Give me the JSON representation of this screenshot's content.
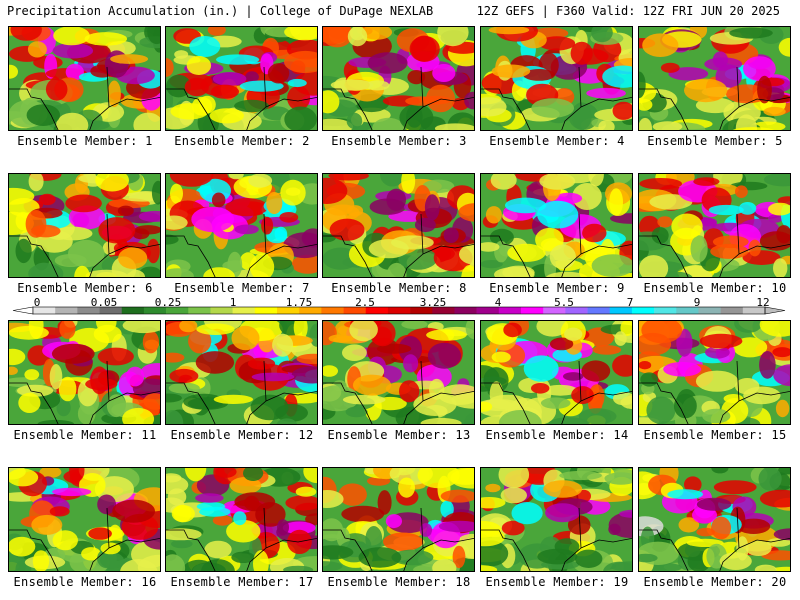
{
  "header": {
    "left_title": "Precipitation Accumulation (in.) | College of DuPage NEXLAB",
    "right_title": "12Z GEFS | F360 Valid: 12Z FRI JUN 20 2025"
  },
  "panels": [
    {
      "label": "Ensemble Member: 1",
      "seed": 1
    },
    {
      "label": "Ensemble Member: 2",
      "seed": 2
    },
    {
      "label": "Ensemble Member: 3",
      "seed": 3
    },
    {
      "label": "Ensemble Member: 4",
      "seed": 4
    },
    {
      "label": "Ensemble Member: 5",
      "seed": 5
    },
    {
      "label": "Ensemble Member: 6",
      "seed": 6
    },
    {
      "label": "Ensemble Member: 7",
      "seed": 7
    },
    {
      "label": "Ensemble Member: 8",
      "seed": 8
    },
    {
      "label": "Ensemble Member: 9",
      "seed": 9
    },
    {
      "label": "Ensemble Member: 10",
      "seed": 10
    },
    {
      "label": "Ensemble Member: 11",
      "seed": 11
    },
    {
      "label": "Ensemble Member: 12",
      "seed": 12
    },
    {
      "label": "Ensemble Member: 13",
      "seed": 13
    },
    {
      "label": "Ensemble Member: 14",
      "seed": 14
    },
    {
      "label": "Ensemble Member: 15",
      "seed": 15
    },
    {
      "label": "Ensemble Member: 16",
      "seed": 16
    },
    {
      "label": "Ensemble Member: 17",
      "seed": 17
    },
    {
      "label": "Ensemble Member: 18",
      "seed": 18
    },
    {
      "label": "Ensemble Member: 19",
      "seed": 19
    },
    {
      "label": "Ensemble Member: 20",
      "seed": 20
    }
  ],
  "colorbar": {
    "labels": [
      "0",
      "0.05",
      "0.25",
      "1",
      "1.75",
      "2.5",
      "3.25",
      "4",
      "5.5",
      "7",
      "9",
      "12"
    ],
    "colors": [
      "#e6e6e6",
      "#b4b4b4",
      "#8c8c8c",
      "#6e6e6e",
      "#1e6e1e",
      "#2e8b2e",
      "#4aa63a",
      "#7cc34a",
      "#b4d84a",
      "#e6f04a",
      "#ffff00",
      "#ffd200",
      "#ffaa00",
      "#ff7800",
      "#ff4a00",
      "#ff0000",
      "#dc0000",
      "#b40000",
      "#960032",
      "#8c0060",
      "#a0008c",
      "#c800c8",
      "#ff00ff",
      "#d264ff",
      "#a064ff",
      "#6478ff",
      "#00c8ff",
      "#00ffff",
      "#50e6e6",
      "#64c8c8",
      "#8cb4b4",
      "#969696",
      "#c8c8c8"
    ]
  }
}
